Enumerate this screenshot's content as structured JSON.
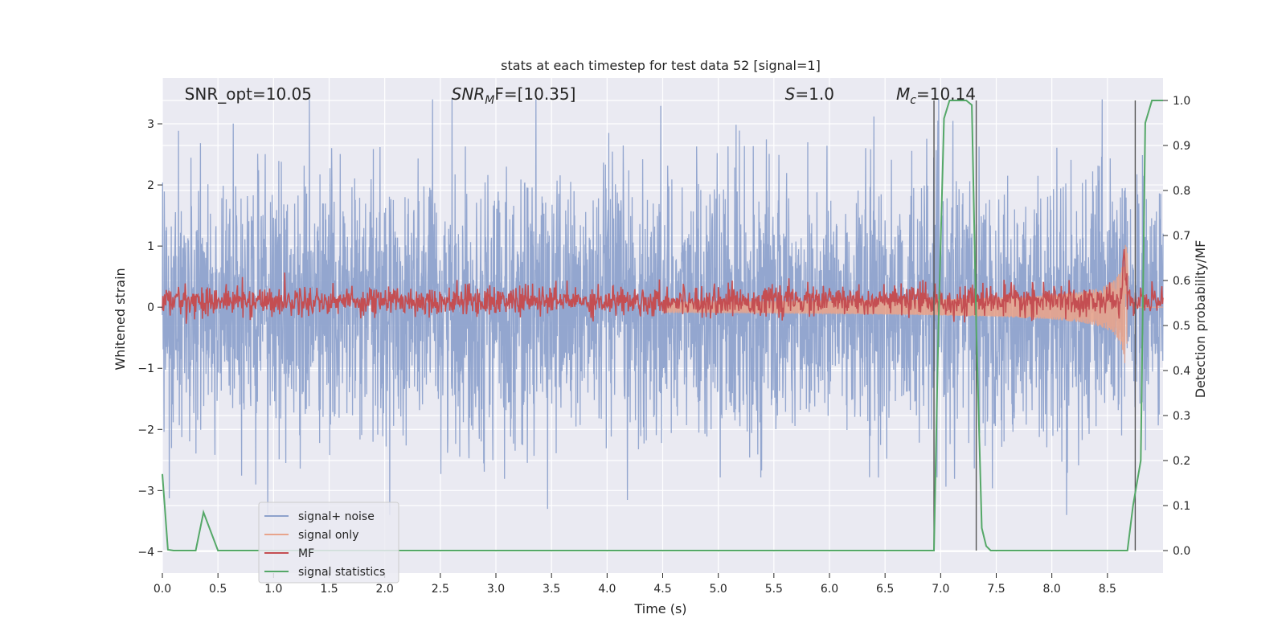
{
  "chart_data": {
    "type": "line",
    "title": "stats at each timestep for test data 52 [signal=1]",
    "xlabel": "Time (s)",
    "ylabel": "Whitened strain",
    "y2label": "Detection probability/MF",
    "xlim": [
      0.0,
      9.0
    ],
    "ylim": [
      -4.35,
      3.75
    ],
    "y2lim": [
      -0.05,
      1.05
    ],
    "xticks": [
      0.0,
      0.5,
      1.0,
      1.5,
      2.0,
      2.5,
      3.0,
      3.5,
      4.0,
      4.5,
      5.0,
      5.5,
      6.0,
      6.5,
      7.0,
      7.5,
      8.0,
      8.5
    ],
    "xtick_labels": [
      "0.0",
      "0.5",
      "1.0",
      "1.5",
      "2.0",
      "2.5",
      "3.0",
      "3.5",
      "4.0",
      "4.5",
      "5.0",
      "5.5",
      "6.0",
      "6.5",
      "7.0",
      "7.5",
      "8.0",
      "8.5"
    ],
    "yticks": [
      3,
      2,
      1,
      0,
      -1,
      -2,
      -3,
      -4
    ],
    "ytick_labels": [
      "3",
      "2",
      "1",
      "0",
      "−1",
      "−2",
      "−3",
      "−4"
    ],
    "y2ticks": [
      1.0,
      0.9,
      0.8,
      0.7,
      0.6,
      0.5,
      0.4,
      0.3,
      0.2,
      0.1,
      0.0
    ],
    "y2tick_labels": [
      "1.0",
      "0.9",
      "0.8",
      "0.7",
      "0.6",
      "0.5",
      "0.4",
      "0.3",
      "0.2",
      "0.1",
      "0.0"
    ],
    "grid": true,
    "legend_position": "bottom-left",
    "annotations": [
      {
        "text_plain": "SNR_opt=10.05",
        "x": 0.2
      },
      {
        "text_base": "SNR",
        "text_sub": "M",
        "text_rest": "F=[10.35]",
        "x": 2.6
      },
      {
        "text_base": "S",
        "text_sub": "",
        "text_rest": "=1.0",
        "x": 5.6
      },
      {
        "text_base": "M",
        "text_sub": "c",
        "text_rest": "=10.14",
        "x": 6.6
      }
    ],
    "vertical_lines": [
      6.94,
      7.32,
      8.75
    ],
    "series": [
      {
        "name": "signal+ noise",
        "color": "#8ea2cc",
        "axis": "left",
        "sample_rate": 400,
        "duration": 9.0,
        "typical_amplitude": 1.0,
        "peak_amplitude": 3.4
      },
      {
        "name": "signal only",
        "color": "#e8a48c",
        "axis": "left",
        "merger_time": 8.68,
        "envelope_start": 4.5,
        "peak_amplitude": 1.1
      },
      {
        "name": "MF",
        "color": "#c44e52",
        "axis": "right",
        "baseline": 0.555,
        "fluctuation": 0.03,
        "spike_time": 8.65,
        "spike_value": 0.68
      },
      {
        "name": "signal statistics",
        "color": "#55a868",
        "axis": "right",
        "x": [
          0.0,
          0.05,
          0.1,
          0.15,
          0.3,
          0.37,
          0.5,
          6.94,
          6.98,
          7.03,
          7.08,
          7.23,
          7.28,
          7.32,
          7.37,
          7.41,
          7.45,
          8.62,
          8.68,
          8.73,
          8.8,
          8.84,
          8.9,
          9.0
        ],
        "y": [
          0.17,
          0.002,
          0.0,
          0.0,
          0.0,
          0.085,
          0.0,
          0.0,
          0.5,
          0.96,
          1.0,
          1.0,
          0.99,
          0.5,
          0.05,
          0.01,
          0.0,
          0.0,
          0.0,
          0.1,
          0.2,
          0.95,
          1.0,
          1.0
        ]
      }
    ]
  }
}
